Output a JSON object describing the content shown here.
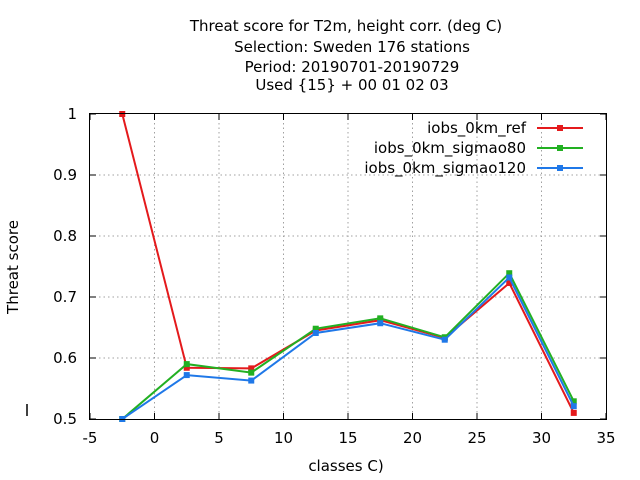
{
  "chart_data": {
    "type": "line",
    "title_lines": [
      "Threat score  for T2m, height corr. (deg C)",
      "Selection: Sweden    176 stations",
      "Period: 20190701-20190729",
      "Used {15} + 00 01 02 03"
    ],
    "xlabel": "classes C)",
    "ylabel": "Threat score",
    "xlim": [
      -5,
      35
    ],
    "ylim": [
      0.5,
      1
    ],
    "xticks": [
      -5,
      0,
      5,
      10,
      15,
      20,
      25,
      30,
      35
    ],
    "yticks": [
      0.5,
      0.6,
      0.7,
      0.8,
      0.9,
      1
    ],
    "ytick_labels": [
      "0.5",
      "0.6",
      "0.7",
      "0.8",
      "0.9",
      "1"
    ],
    "grid": true,
    "legend_position": "top-right",
    "x": [
      -2.5,
      2.5,
      7.5,
      12.5,
      17.5,
      22.5,
      27.5,
      32.5
    ],
    "series": [
      {
        "name": "iobs_0km_ref",
        "color": "#e41a1c",
        "values": [
          1.0,
          0.584,
          0.583,
          0.645,
          0.662,
          0.633,
          0.723,
          0.51
        ]
      },
      {
        "name": "iobs_0km_sigmao80",
        "color": "#22b022",
        "values": [
          0.5,
          0.59,
          0.576,
          0.648,
          0.665,
          0.634,
          0.739,
          0.529
        ]
      },
      {
        "name": "iobs_0km_sigmao120",
        "color": "#1f78e8",
        "values": [
          0.5,
          0.572,
          0.563,
          0.641,
          0.657,
          0.63,
          0.732,
          0.521
        ]
      }
    ]
  }
}
